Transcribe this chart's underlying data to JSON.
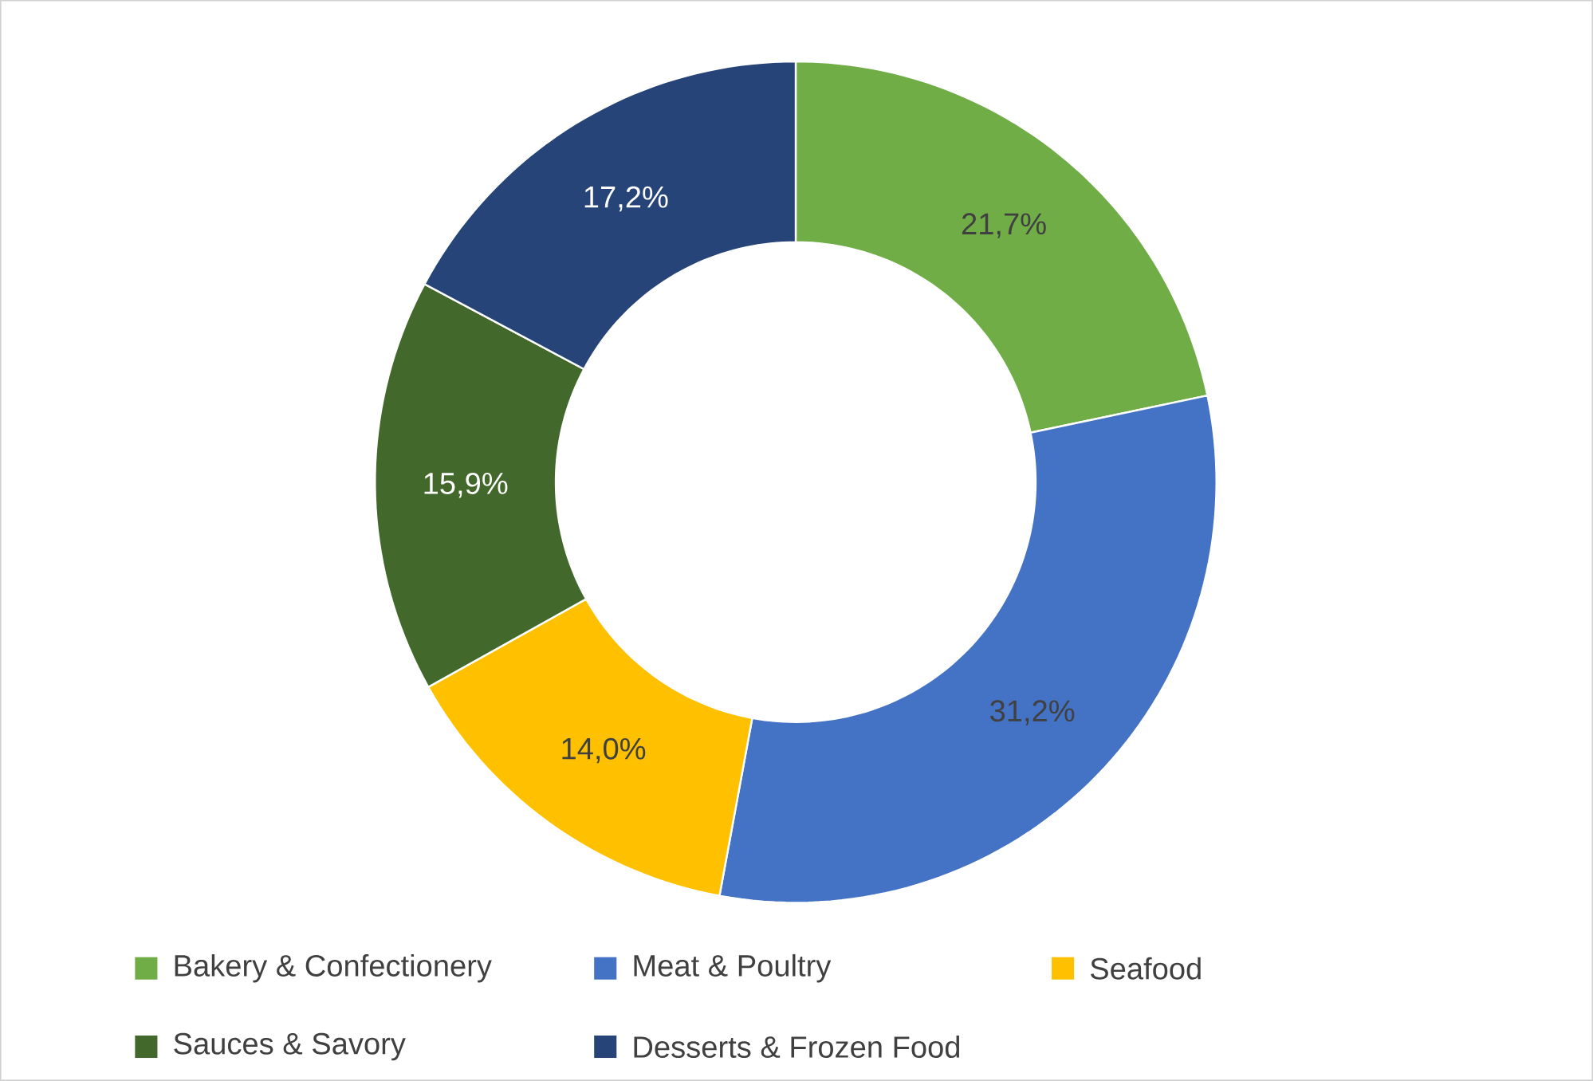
{
  "chart_data": {
    "type": "donut",
    "categories": [
      "Bakery & Confectionery",
      "Meat & Poultry",
      "Seafood",
      "Sauces & Savory",
      "Desserts & Frozen Food"
    ],
    "values": [
      21.7,
      31.2,
      14.0,
      15.9,
      17.2
    ],
    "colors": [
      "#70ad47",
      "#4472c4",
      "#ffc000",
      "#43682b",
      "#264478"
    ],
    "value_labels": [
      "21,7%",
      "31,2%",
      "14,0%",
      "15,9%",
      "17,2%"
    ],
    "legend": "bottom"
  }
}
